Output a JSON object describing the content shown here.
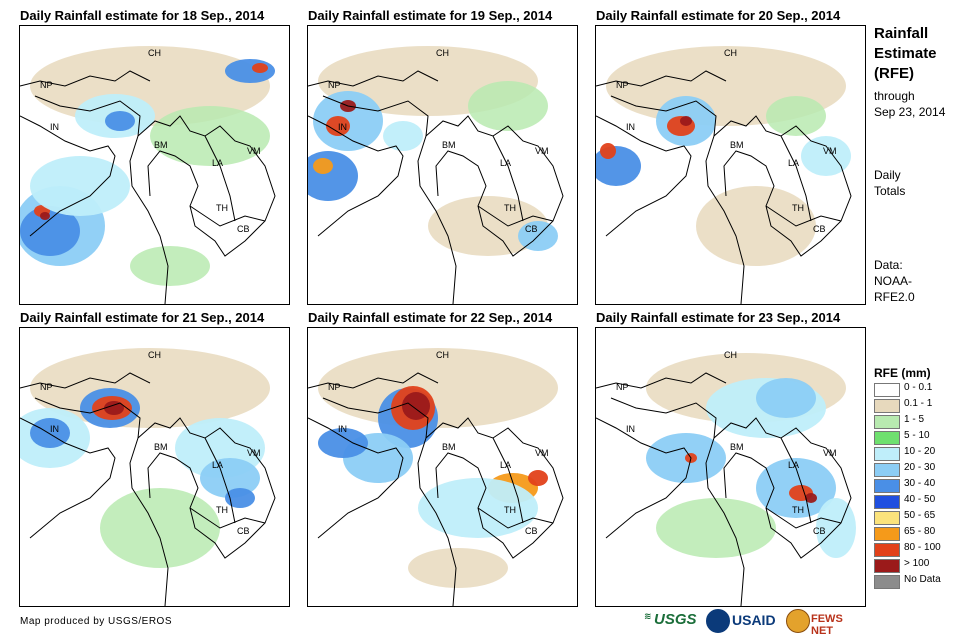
{
  "panels": [
    {
      "title": "Daily Rainfall estimate for 18 Sep., 2014"
    },
    {
      "title": "Daily Rainfall estimate for 19 Sep., 2014"
    },
    {
      "title": "Daily Rainfall estimate for 20 Sep., 2014"
    },
    {
      "title": "Daily Rainfall estimate for 21 Sep., 2014"
    },
    {
      "title": "Daily Rainfall estimate for 22 Sep., 2014"
    },
    {
      "title": "Daily Rainfall estimate for 23 Sep., 2014"
    }
  ],
  "country_labels": {
    "ch": "CH",
    "np": "NP",
    "in": "IN",
    "bm": "BM",
    "la": "LA",
    "vm": "VM",
    "th": "TH",
    "cb": "CB"
  },
  "sidebar": {
    "heading_line1": "Rainfall",
    "heading_line2": "Estimate",
    "heading_line3": "(RFE)",
    "through_label": "through",
    "through_date": "Sep 23, 2014",
    "daily_line1": "Daily",
    "daily_line2": "Totals",
    "data_line1": "Data:",
    "data_line2": "NOAA-",
    "data_line3": "RFE2.0"
  },
  "legend": {
    "title": "RFE (mm)",
    "items": [
      {
        "label": "0 - 0.1",
        "color": "#ffffff"
      },
      {
        "label": "0.1 - 1",
        "color": "#e7d9bd"
      },
      {
        "label": "1 - 5",
        "color": "#b8eab0"
      },
      {
        "label": "5 - 10",
        "color": "#6fe06f"
      },
      {
        "label": "10 - 20",
        "color": "#bfeefa"
      },
      {
        "label": "20 - 30",
        "color": "#8ccdf5"
      },
      {
        "label": "30 - 40",
        "color": "#4a8fe6"
      },
      {
        "label": "40 - 50",
        "color": "#1f4fe0"
      },
      {
        "label": "50 - 65",
        "color": "#fbe37c"
      },
      {
        "label": "65 - 80",
        "color": "#f59a1a"
      },
      {
        "label": "80 - 100",
        "color": "#e2411a"
      },
      {
        "label": "> 100",
        "color": "#9b1a1a"
      },
      {
        "label": "No Data",
        "color": "#8c8c8c"
      }
    ]
  },
  "footer": {
    "credit": "Map produced by USGS/EROS",
    "logo_usgs": "USGS",
    "logo_usaid": "USAID",
    "logo_fews": "FEWS NET"
  }
}
